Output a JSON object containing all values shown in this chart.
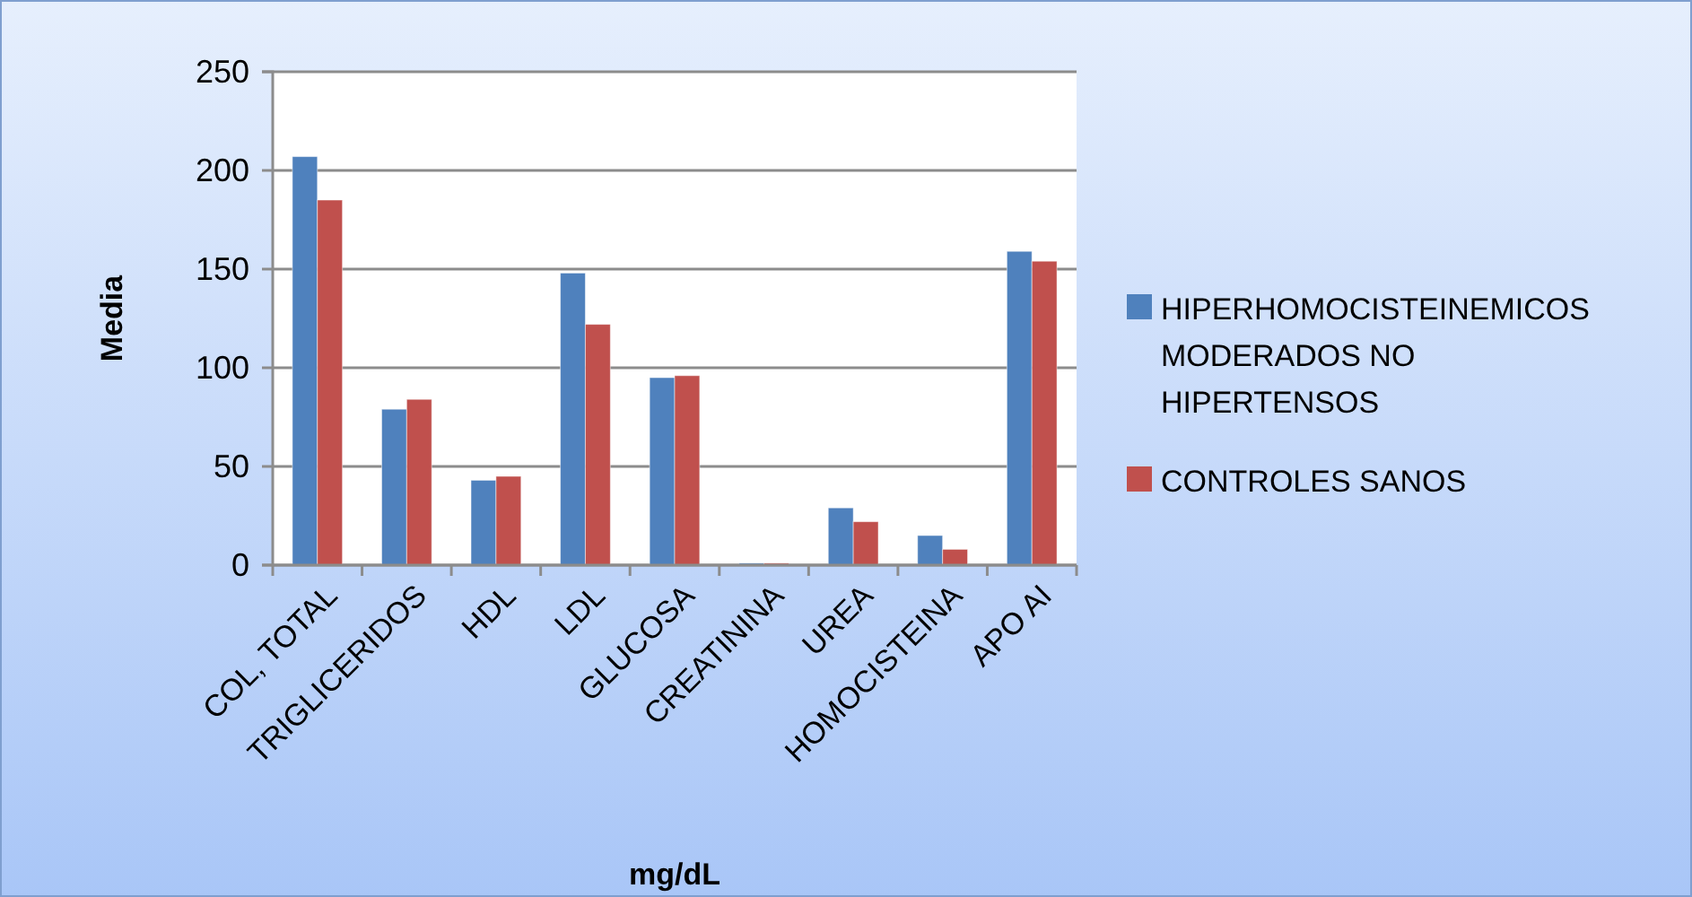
{
  "chart_data": {
    "type": "bar",
    "xlabel": "mg/dL",
    "ylabel": "Media",
    "categories": [
      "COL, TOTAL",
      "TRIGLICERIDOS",
      "HDL",
      "LDL",
      "GLUCOSA",
      "CREATININA",
      "UREA",
      "HOMOCISTEINA",
      "APO AI"
    ],
    "series": [
      {
        "name": "HIPERHOMOCISTEINEMICOS MODERADOS NO HIPERTENSOS",
        "color": "#4f81bd",
        "values": [
          207,
          79,
          43,
          148,
          95,
          1,
          29,
          15,
          159
        ]
      },
      {
        "name": "CONTROLES SANOS",
        "color": "#c0504d",
        "values": [
          185,
          84,
          45,
          122,
          96,
          1,
          22,
          8,
          154
        ]
      }
    ],
    "ylim": [
      0,
      250
    ],
    "yticks": [
      0,
      50,
      100,
      150,
      200,
      250
    ],
    "grid": "y",
    "legend": "right"
  }
}
